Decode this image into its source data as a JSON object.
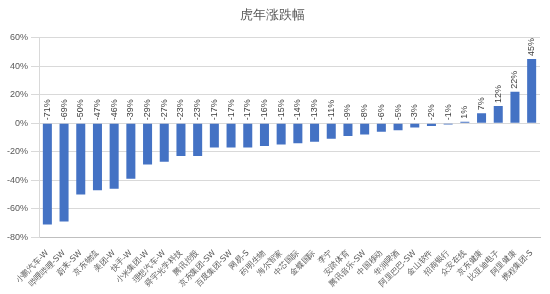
{
  "chart_data": {
    "type": "bar",
    "title": "虎年涨跌幅",
    "categories": [
      "小鹏汽车-W",
      "哔哩哔哩-SW",
      "蔚来-SW",
      "京东物流",
      "美团-W",
      "快手-W",
      "小米集团-W",
      "理想汽车-W",
      "舜宇光学科技",
      "腾讯控股",
      "京东集团-SW",
      "百度集团-SW",
      "网易-S",
      "药明生物",
      "海尔智家",
      "中芯国际",
      "金蝶国际",
      "李宁",
      "安踏体育",
      "腾讯音乐-SW",
      "中国移动",
      "华润啤酒",
      "阿里巴巴-SW",
      "金山软件",
      "招商银行",
      "众安在线",
      "京东健康",
      "比亚迪电子",
      "阿里健康",
      "携程集团-S"
    ],
    "values": [
      -71,
      -69,
      -50,
      -47,
      -46,
      -39,
      -29,
      -27,
      -23,
      -23,
      -17,
      -17,
      -17,
      -16,
      -15,
      -14,
      -13,
      -11,
      -9,
      -8,
      -6,
      -5,
      -3,
      -2,
      -1,
      1,
      7,
      12,
      22,
      45
    ],
    "value_labels": [
      "-71%",
      "-69%",
      "-50%",
      "-47%",
      "-46%",
      "-39%",
      "-29%",
      "-27%",
      "-23%",
      "-23%",
      "-17%",
      "-17%",
      "-17%",
      "-16%",
      "-15%",
      "-14%",
      "-13%",
      "-11%",
      "-9%",
      "-8%",
      "-6%",
      "-5%",
      "-3%",
      "-2%",
      "-1%",
      "1%",
      "7%",
      "12%",
      "22%",
      "45%"
    ],
    "color": "#4472c4",
    "ylim": [
      -80,
      60
    ],
    "yticks": [
      {
        "value": -80,
        "label": "-80%"
      },
      {
        "value": -60,
        "label": "-60%"
      },
      {
        "value": -40,
        "label": "-40%"
      },
      {
        "value": -20,
        "label": "-20%"
      },
      {
        "value": 0,
        "label": "0%"
      },
      {
        "value": 20,
        "label": "20%"
      },
      {
        "value": 40,
        "label": "40%"
      },
      {
        "value": 60,
        "label": "60%"
      }
    ],
    "grid": true,
    "data_labels": true
  }
}
